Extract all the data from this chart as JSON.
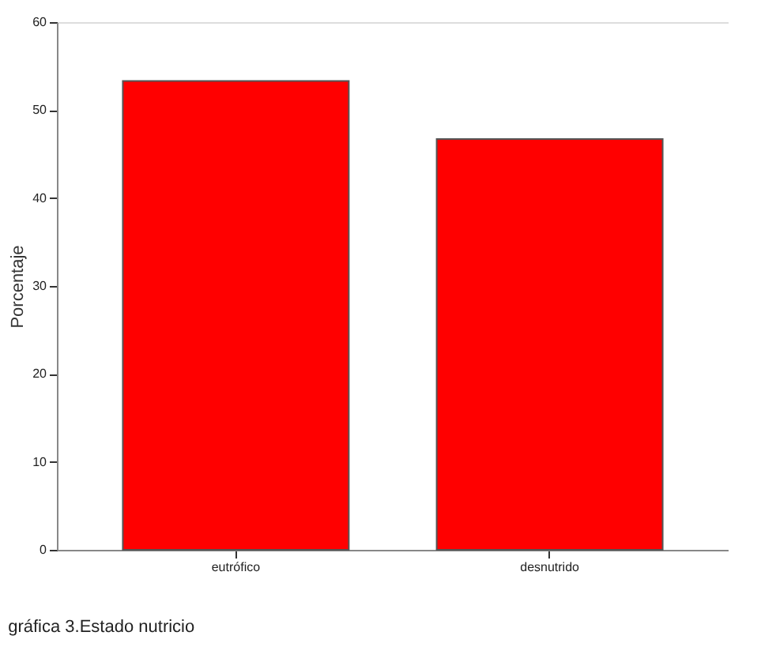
{
  "chart_data": {
    "type": "bar",
    "ylabel": "Porcentaje",
    "categories": [
      "eutrófico",
      "desnutrido"
    ],
    "values": [
      53.3,
      46.7
    ],
    "color": "#ff0000",
    "ylim": [
      0,
      60
    ],
    "yticks": [
      0,
      10,
      20,
      30,
      40,
      50,
      60
    ],
    "grid": false,
    "annotations": [
      "gráfica 3.Estado nutricio"
    ]
  }
}
